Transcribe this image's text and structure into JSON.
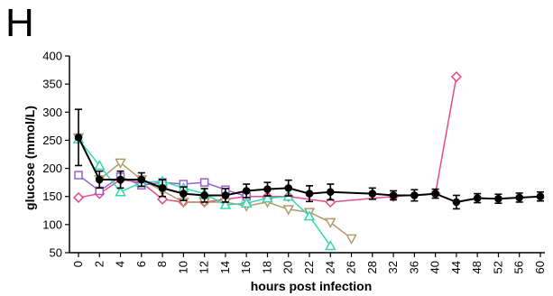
{
  "panel_label": "H",
  "chart_data": {
    "type": "line",
    "title": "",
    "xlabel": "hours post infection",
    "ylabel": "glucose (mmol/L)",
    "xlim": [
      0,
      60
    ],
    "ylim": [
      50,
      400
    ],
    "x_ticks": [
      0,
      2,
      4,
      6,
      8,
      10,
      12,
      14,
      16,
      18,
      20,
      22,
      24,
      26,
      28,
      32,
      36,
      40,
      44,
      48,
      52,
      56,
      60
    ],
    "y_ticks": [
      50,
      100,
      150,
      200,
      250,
      300,
      350,
      400
    ],
    "grid": false,
    "legend": "none",
    "series": [
      {
        "color": "#e84a8a",
        "marker": "diamond-open",
        "x": [
          0,
          2,
          4,
          6,
          8,
          10,
          12,
          14,
          16,
          18,
          20,
          24,
          32,
          40,
          44
        ],
        "y": [
          148,
          155,
          180,
          175,
          145,
          140,
          140,
          145,
          150,
          150,
          150,
          140,
          150,
          155,
          363
        ]
      },
      {
        "color": "#b09a6a",
        "marker": "triangle-down-open",
        "x": [
          0,
          2,
          4,
          6,
          8,
          10,
          12,
          14,
          16,
          18,
          20,
          22,
          24,
          26
        ],
        "y": [
          255,
          180,
          210,
          180,
          160,
          140,
          140,
          140,
          133,
          140,
          127,
          122,
          104,
          75
        ]
      },
      {
        "color": "#9b5fd0",
        "marker": "square-open",
        "x": [
          0,
          2,
          4,
          6,
          8,
          10,
          12,
          14,
          16
        ],
        "y": [
          188,
          160,
          185,
          170,
          175,
          172,
          175,
          162,
          150
        ]
      },
      {
        "color": "#35d6b0",
        "marker": "triangle-up-open",
        "x": [
          0,
          2,
          4,
          6,
          8,
          10,
          12,
          14,
          16,
          18,
          20,
          22,
          24
        ],
        "y": [
          252,
          205,
          158,
          175,
          177,
          165,
          155,
          135,
          138,
          147,
          150,
          115,
          62
        ]
      },
      {
        "color": "#000000",
        "marker": "circle-filled",
        "x": [
          0,
          2,
          4,
          6,
          8,
          10,
          12,
          14,
          16,
          18,
          20,
          22,
          24,
          28,
          32,
          36,
          40,
          44,
          48,
          52,
          56,
          60
        ],
        "y": [
          255,
          180,
          180,
          180,
          165,
          155,
          152,
          152,
          160,
          163,
          165,
          155,
          158,
          155,
          152,
          152,
          155,
          140,
          147,
          146,
          148,
          150
        ],
        "error": [
          50,
          15,
          15,
          12,
          15,
          12,
          12,
          12,
          12,
          12,
          14,
          14,
          14,
          10,
          8,
          10,
          8,
          12,
          8,
          8,
          8,
          8
        ]
      }
    ]
  }
}
